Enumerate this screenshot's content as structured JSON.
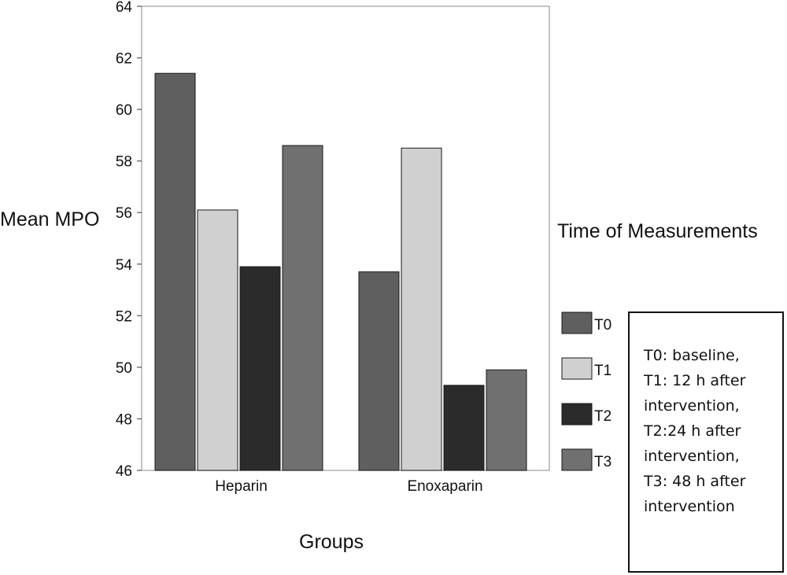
{
  "chart_data": {
    "type": "bar",
    "title": "",
    "xlabel": "Groups",
    "ylabel": "Mean MPO",
    "ylim": [
      46,
      64
    ],
    "yticks": [
      46,
      48,
      50,
      52,
      54,
      56,
      58,
      60,
      62,
      64
    ],
    "categories": [
      "Heparin",
      "Enoxaparin"
    ],
    "series": [
      {
        "name": "T0",
        "values": [
          61.4,
          53.7
        ]
      },
      {
        "name": "T1",
        "values": [
          56.1,
          58.5
        ]
      },
      {
        "name": "T2",
        "values": [
          53.9,
          49.3
        ]
      },
      {
        "name": "T3",
        "values": [
          58.6,
          49.9
        ]
      }
    ],
    "series_colors": [
      "#5f5f5f",
      "#d0d0d0",
      "#2b2b2b",
      "#707070"
    ],
    "legend_title": "Time of Measurements",
    "legend_position": "right",
    "grid": false
  },
  "notes": [
    "T0: baseline,",
    "T1: 12 h after",
    "intervention,",
    "T2:24 h after",
    "intervention,",
    "T3: 48 h after",
    "intervention"
  ]
}
